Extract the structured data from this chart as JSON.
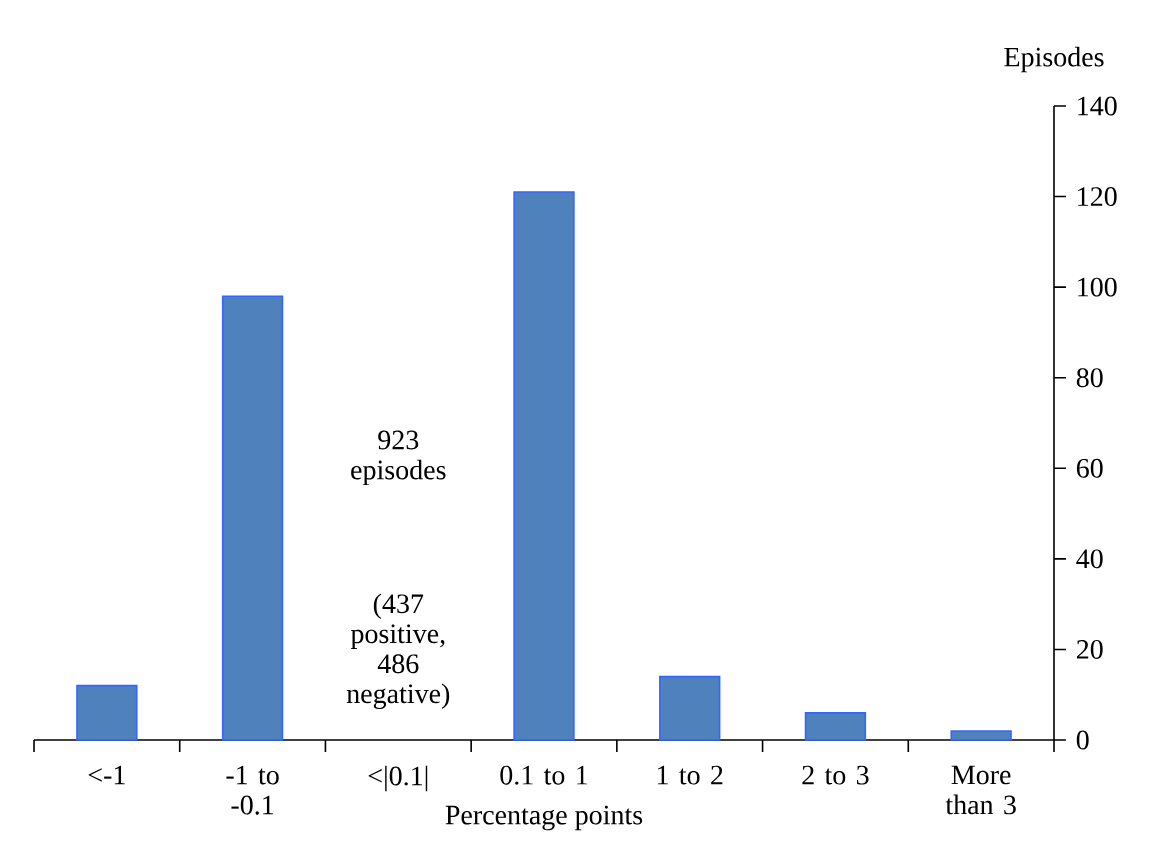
{
  "chart_data": {
    "type": "bar",
    "categories": [
      "<-1",
      "-1 to -0.1",
      "<|0.1|",
      "0.1 to 1",
      "1 to 2",
      "2 to 3",
      "More than 3"
    ],
    "values": [
      12,
      98,
      null,
      121,
      14,
      6,
      2
    ],
    "color": "#4f81bd",
    "xlabel": "Percentage points",
    "ylabel": "Episodes",
    "ylim": [
      0,
      140
    ],
    "yticks": [
      0,
      20,
      40,
      60,
      80,
      100,
      120,
      140
    ],
    "grid": false,
    "annotations": [
      "923 episodes",
      "(437 positive, 486 negative)"
    ]
  }
}
